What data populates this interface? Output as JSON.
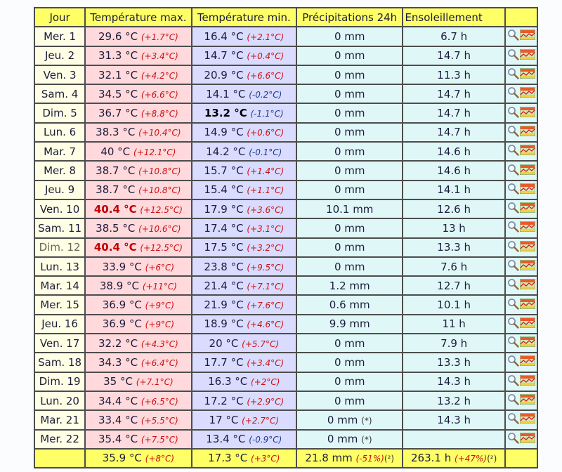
{
  "headers": {
    "jour": "Jour",
    "tmax": "Température max.",
    "tmin": "Température min.",
    "precip": "Précipitations 24h",
    "sun": "Ensoleillement"
  },
  "rows": [
    {
      "day": "Mer. 1",
      "tmax": "29.6 °C",
      "tmax_dev": "(+1.7°C)",
      "tmin": "16.4 °C",
      "tmin_dev": "(+2.1°C)",
      "precip": "0 mm",
      "sun": "6.7 h"
    },
    {
      "day": "Jeu. 2",
      "tmax": "31.3 °C",
      "tmax_dev": "(+3.4°C)",
      "tmin": "14.7 °C",
      "tmin_dev": "(+0.4°C)",
      "precip": "0 mm",
      "sun": "14.7 h"
    },
    {
      "day": "Ven. 3",
      "tmax": "32.1 °C",
      "tmax_dev": "(+4.2°C)",
      "tmin": "20.9 °C",
      "tmin_dev": "(+6.6°C)",
      "precip": "0 mm",
      "sun": "11.3 h"
    },
    {
      "day": "Sam. 4",
      "tmax": "34.5 °C",
      "tmax_dev": "(+6.6°C)",
      "tmin": "14.1 °C",
      "tmin_dev": "(-0.2°C)",
      "precip": "0 mm",
      "sun": "14.7 h"
    },
    {
      "day": "Dim. 5",
      "tmax": "36.7 °C",
      "tmax_dev": "(+8.8°C)",
      "tmin": "13.2 °C",
      "tmin_dev": "(-1.1°C)",
      "precip": "0 mm",
      "sun": "14.7 h"
    },
    {
      "day": "Lun. 6",
      "tmax": "38.3 °C",
      "tmax_dev": "(+10.4°C)",
      "tmin": "14.9 °C",
      "tmin_dev": "(+0.6°C)",
      "precip": "0 mm",
      "sun": "14.7 h"
    },
    {
      "day": "Mar. 7",
      "tmax": "40 °C",
      "tmax_dev": "(+12.1°C)",
      "tmin": "14.2 °C",
      "tmin_dev": "(-0.1°C)",
      "precip": "0 mm",
      "sun": "14.6 h"
    },
    {
      "day": "Mer. 8",
      "tmax": "38.7 °C",
      "tmax_dev": "(+10.8°C)",
      "tmin": "15.7 °C",
      "tmin_dev": "(+1.4°C)",
      "precip": "0 mm",
      "sun": "14.6 h"
    },
    {
      "day": "Jeu. 9",
      "tmax": "38.7 °C",
      "tmax_dev": "(+10.8°C)",
      "tmin": "15.4 °C",
      "tmin_dev": "(+1.1°C)",
      "precip": "0 mm",
      "sun": "14.1 h"
    },
    {
      "day": "Ven. 10",
      "tmax": "40.4 °C",
      "tmax_dev": "(+12.5°C)",
      "tmin": "17.9 °C",
      "tmin_dev": "(+3.6°C)",
      "precip": "10.1 mm",
      "sun": "12.6 h"
    },
    {
      "day": "Sam. 11",
      "tmax": "38.5 °C",
      "tmax_dev": "(+10.6°C)",
      "tmin": "17.4 °C",
      "tmin_dev": "(+3.1°C)",
      "precip": "0 mm",
      "sun": "13 h"
    },
    {
      "day": "Dim. 12",
      "tmax": "40.4 °C",
      "tmax_dev": "(+12.5°C)",
      "tmin": "17.5 °C",
      "tmin_dev": "(+3.2°C)",
      "precip": "0 mm",
      "sun": "13.3 h"
    },
    {
      "day": "Lun. 13",
      "tmax": "33.9 °C",
      "tmax_dev": "(+6°C)",
      "tmin": "23.8 °C",
      "tmin_dev": "(+9.5°C)",
      "precip": "0 mm",
      "sun": "7.6 h"
    },
    {
      "day": "Mar. 14",
      "tmax": "38.9 °C",
      "tmax_dev": "(+11°C)",
      "tmin": "21.4 °C",
      "tmin_dev": "(+7.1°C)",
      "precip": "1.2 mm",
      "sun": "12.7 h"
    },
    {
      "day": "Mer. 15",
      "tmax": "36.9 °C",
      "tmax_dev": "(+9°C)",
      "tmin": "21.9 °C",
      "tmin_dev": "(+7.6°C)",
      "precip": "0.6 mm",
      "sun": "10.1 h"
    },
    {
      "day": "Jeu. 16",
      "tmax": "36.9 °C",
      "tmax_dev": "(+9°C)",
      "tmin": "18.9 °C",
      "tmin_dev": "(+4.6°C)",
      "precip": "9.9 mm",
      "sun": "11 h"
    },
    {
      "day": "Ven. 17",
      "tmax": "32.2 °C",
      "tmax_dev": "(+4.3°C)",
      "tmin": "20 °C",
      "tmin_dev": "(+5.7°C)",
      "precip": "0 mm",
      "sun": "7.9 h"
    },
    {
      "day": "Sam. 18",
      "tmax": "34.3 °C",
      "tmax_dev": "(+6.4°C)",
      "tmin": "17.7 °C",
      "tmin_dev": "(+3.4°C)",
      "precip": "0 mm",
      "sun": "13.3 h"
    },
    {
      "day": "Dim. 19",
      "tmax": "35 °C",
      "tmax_dev": "(+7.1°C)",
      "tmin": "16.3 °C",
      "tmin_dev": "(+2°C)",
      "precip": "0 mm",
      "sun": "14.3 h"
    },
    {
      "day": "Lun. 20",
      "tmax": "34.4 °C",
      "tmax_dev": "(+6.5°C)",
      "tmin": "17.2 °C",
      "tmin_dev": "(+2.9°C)",
      "precip": "0 mm",
      "sun": "13.2 h"
    },
    {
      "day": "Mar. 21",
      "tmax": "33.4 °C",
      "tmax_dev": "(+5.5°C)",
      "tmin": "17 °C",
      "tmin_dev": "(+2.7°C)",
      "precip": "0 mm",
      "precip_note": "(*)",
      "sun": "14.3 h"
    },
    {
      "day": "Mer. 22",
      "tmax": "35.4 °C",
      "tmax_dev": "(+7.5°C)",
      "tmin": "13.4 °C",
      "tmin_dev": "(-0.9°C)",
      "precip": "0 mm",
      "precip_note": "(*)",
      "sun": ""
    }
  ],
  "footer": {
    "tmax": "35.9 °C",
    "tmax_dev": "(+8°C)",
    "tmin": "17.3 °C",
    "tmin_dev": "(+3°C)",
    "precip": "21.8 mm",
    "precip_dev": "(-51%)",
    "precip_note": "(²)",
    "sun": "263.1 h",
    "sun_dev": "(+47%)",
    "sun_note": "(²)"
  },
  "highlights": {
    "tmax_record_days": [
      "Ven. 10",
      "Dim. 12"
    ],
    "tmin_record_days": [
      "Dim. 5"
    ],
    "dimmed_day": "Dim. 12"
  },
  "colors": {
    "header_bg": "#ffff66",
    "day_bg": "#ffffe6",
    "tmax_bg": "#ffd9dc",
    "tmin_bg": "#d9dcff",
    "other_bg": "#e0f7f7",
    "positive_dev": "#cc1111",
    "negative_dev": "#1c3c8c",
    "record_max": "#c00000"
  },
  "icons": {
    "row_action_1": "magnifier-icon",
    "row_action_2": "mini-chart-icon"
  }
}
